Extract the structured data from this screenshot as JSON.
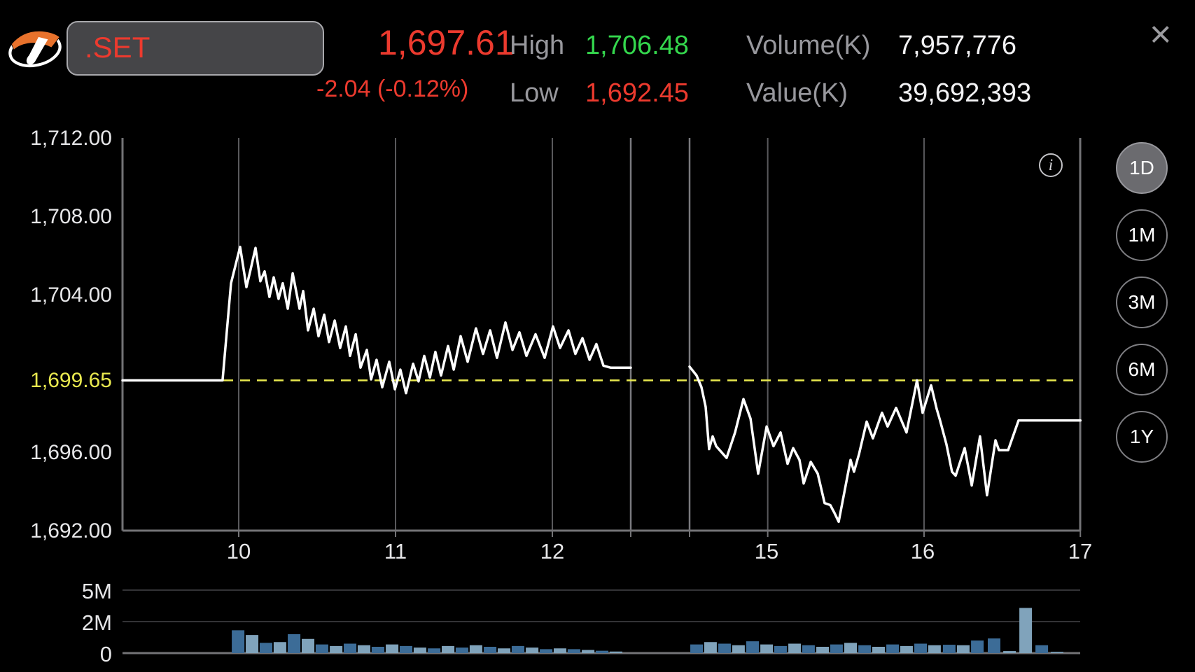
{
  "header": {
    "symbol_input": ".SET",
    "price": "1,697.61",
    "change": "-2.04 (-0.12%)",
    "high_label": "High",
    "high_value": "1,706.48",
    "low_label": "Low",
    "low_value": "1,692.45",
    "volume_label": "Volume(K)",
    "volume_value": "7,957,776",
    "value_label": "Value(K)",
    "value_value": "39,692,393",
    "close_icon": "×",
    "info_icon": "i"
  },
  "range_buttons": [
    {
      "label": "1D",
      "selected": true
    },
    {
      "label": "1M",
      "selected": false
    },
    {
      "label": "3M",
      "selected": false
    },
    {
      "label": "6M",
      "selected": false
    },
    {
      "label": "1Y",
      "selected": false
    }
  ],
  "colors": {
    "background": "#000000",
    "red": "#ec3a2e",
    "green": "#34d74d",
    "yellow": "#e9e94f",
    "gray_label": "#98989d",
    "white": "#f2f2f4",
    "axis": "#737376",
    "grid_hour": "#59595c",
    "grid_session": "#7a7a7e",
    "vol_grid": "#333336",
    "bar_dark": "#3c6c97",
    "bar_light": "#80a3bb",
    "price_line": "#ffffff",
    "logo_orange": "#e8722c"
  },
  "chart_data": {
    "type": "line",
    "title": ".SET intraday price with volume",
    "x_axis": {
      "tick_labels": [
        "10",
        "11",
        "12",
        "15",
        "16",
        "17"
      ],
      "tick_hours": [
        10,
        11,
        12,
        15,
        16,
        17
      ],
      "grid_hours": [
        10,
        11,
        12,
        15,
        16
      ],
      "session_breaks": [
        12.5,
        14.5
      ],
      "sessions": [
        [
          9.26,
          12.5
        ],
        [
          14.5,
          17.0
        ]
      ]
    },
    "y_axis": {
      "tick_labels": [
        "1,712.00",
        "1,708.00",
        "1,704.00",
        "1,696.00",
        "1,692.00"
      ],
      "tick_values": [
        1712,
        1708,
        1704,
        1696,
        1692
      ],
      "range": [
        1692,
        1712
      ]
    },
    "prev_close": {
      "label": "1,699.65",
      "value": 1699.65
    },
    "stats": {
      "open_flat": 1699.65,
      "high": 1706.48,
      "low": 1692.45,
      "close": 1697.61
    },
    "price_series": {
      "morning": [
        [
          9.259,
          1699.65
        ],
        [
          9.897,
          1699.65
        ],
        [
          9.951,
          1704.6
        ],
        [
          10.009,
          1706.45
        ],
        [
          10.049,
          1704.4
        ],
        [
          10.076,
          1705.3
        ],
        [
          10.107,
          1706.4
        ],
        [
          10.138,
          1704.7
        ],
        [
          10.165,
          1705.2
        ],
        [
          10.196,
          1703.9
        ],
        [
          10.223,
          1704.9
        ],
        [
          10.254,
          1703.8
        ],
        [
          10.281,
          1704.6
        ],
        [
          10.313,
          1703.3
        ],
        [
          10.344,
          1705.1
        ],
        [
          10.388,
          1703.3
        ],
        [
          10.411,
          1704.2
        ],
        [
          10.442,
          1702.2
        ],
        [
          10.478,
          1703.3
        ],
        [
          10.509,
          1701.9
        ],
        [
          10.545,
          1703.0
        ],
        [
          10.576,
          1701.6
        ],
        [
          10.612,
          1702.7
        ],
        [
          10.647,
          1701.3
        ],
        [
          10.683,
          1702.4
        ],
        [
          10.71,
          1700.9
        ],
        [
          10.746,
          1702.0
        ],
        [
          10.777,
          1700.3
        ],
        [
          10.817,
          1701.2
        ],
        [
          10.844,
          1699.7
        ],
        [
          10.879,
          1700.7
        ],
        [
          10.915,
          1699.3
        ],
        [
          10.96,
          1700.6
        ],
        [
          10.996,
          1699.2
        ],
        [
          11.031,
          1700.2
        ],
        [
          11.067,
          1699.0
        ],
        [
          11.112,
          1700.5
        ],
        [
          11.147,
          1699.6
        ],
        [
          11.183,
          1700.9
        ],
        [
          11.219,
          1699.8
        ],
        [
          11.254,
          1701.1
        ],
        [
          11.29,
          1699.9
        ],
        [
          11.335,
          1701.4
        ],
        [
          11.371,
          1700.2
        ],
        [
          11.415,
          1701.9
        ],
        [
          11.46,
          1700.6
        ],
        [
          11.513,
          1702.3
        ],
        [
          11.558,
          1701.0
        ],
        [
          11.603,
          1702.2
        ],
        [
          11.647,
          1700.8
        ],
        [
          11.701,
          1702.6
        ],
        [
          11.746,
          1701.2
        ],
        [
          11.79,
          1702.1
        ],
        [
          11.835,
          1700.9
        ],
        [
          11.893,
          1702.0
        ],
        [
          11.951,
          1700.8
        ],
        [
          12.004,
          1702.4
        ],
        [
          12.049,
          1701.3
        ],
        [
          12.103,
          1702.2
        ],
        [
          12.147,
          1701.0
        ],
        [
          12.192,
          1701.8
        ],
        [
          12.237,
          1700.7
        ],
        [
          12.281,
          1701.5
        ],
        [
          12.326,
          1700.4
        ],
        [
          12.371,
          1700.3
        ],
        [
          12.5,
          1700.3
        ]
      ],
      "afternoon": [
        [
          14.5,
          1700.35
        ],
        [
          14.545,
          1699.9
        ],
        [
          14.576,
          1699.3
        ],
        [
          14.603,
          1698.3
        ],
        [
          14.625,
          1696.15
        ],
        [
          14.648,
          1696.8
        ],
        [
          14.67,
          1696.3
        ],
        [
          14.737,
          1695.7
        ],
        [
          14.791,
          1697.0
        ],
        [
          14.845,
          1698.7
        ],
        [
          14.89,
          1697.7
        ],
        [
          14.939,
          1694.9
        ],
        [
          14.993,
          1697.3
        ],
        [
          15.037,
          1696.3
        ],
        [
          15.082,
          1697.0
        ],
        [
          15.127,
          1695.4
        ],
        [
          15.163,
          1696.2
        ],
        [
          15.203,
          1695.6
        ],
        [
          15.23,
          1694.4
        ],
        [
          15.275,
          1695.5
        ],
        [
          15.32,
          1694.9
        ],
        [
          15.364,
          1693.4
        ],
        [
          15.4,
          1693.3
        ],
        [
          15.427,
          1692.9
        ],
        [
          15.454,
          1692.45
        ],
        [
          15.53,
          1695.6
        ],
        [
          15.552,
          1695.0
        ],
        [
          15.584,
          1695.9
        ],
        [
          15.633,
          1697.55
        ],
        [
          15.673,
          1696.7
        ],
        [
          15.731,
          1698.0
        ],
        [
          15.767,
          1697.3
        ],
        [
          15.821,
          1698.25
        ],
        [
          15.888,
          1697.0
        ],
        [
          15.955,
          1699.65
        ],
        [
          15.991,
          1698.0
        ],
        [
          16.045,
          1699.4
        ],
        [
          16.081,
          1698.2
        ],
        [
          16.103,
          1697.6
        ],
        [
          16.143,
          1696.4
        ],
        [
          16.179,
          1695.0
        ],
        [
          16.202,
          1694.8
        ],
        [
          16.26,
          1696.2
        ],
        [
          16.305,
          1694.3
        ],
        [
          16.358,
          1696.8
        ],
        [
          16.403,
          1693.8
        ],
        [
          16.457,
          1696.6
        ],
        [
          16.479,
          1696.1
        ],
        [
          16.538,
          1696.1
        ],
        [
          16.605,
          1697.61
        ],
        [
          17.0,
          1697.61
        ]
      ]
    },
    "volume": {
      "tick_labels": [
        "5M",
        "2M",
        "0"
      ],
      "tick_values": [
        5000000,
        2000000,
        0
      ],
      "scale_note": "non-linear axis: 0-2M and 2M-5M spans have equal height",
      "bars_unit": "millions",
      "bars": [
        [
          9.996,
          1.45,
          "d"
        ],
        [
          10.085,
          1.15,
          "l"
        ],
        [
          10.174,
          0.65,
          "d"
        ],
        [
          10.263,
          0.7,
          "l"
        ],
        [
          10.353,
          1.2,
          "d"
        ],
        [
          10.442,
          0.9,
          "l"
        ],
        [
          10.531,
          0.55,
          "d"
        ],
        [
          10.621,
          0.45,
          "l"
        ],
        [
          10.71,
          0.6,
          "d"
        ],
        [
          10.799,
          0.5,
          "l"
        ],
        [
          10.888,
          0.4,
          "d"
        ],
        [
          10.978,
          0.55,
          "l"
        ],
        [
          11.067,
          0.45,
          "d"
        ],
        [
          11.156,
          0.35,
          "l"
        ],
        [
          11.246,
          0.3,
          "d"
        ],
        [
          11.335,
          0.45,
          "l"
        ],
        [
          11.424,
          0.35,
          "d"
        ],
        [
          11.513,
          0.5,
          "l"
        ],
        [
          11.603,
          0.4,
          "d"
        ],
        [
          11.692,
          0.3,
          "l"
        ],
        [
          11.781,
          0.45,
          "d"
        ],
        [
          11.871,
          0.35,
          "l"
        ],
        [
          11.96,
          0.25,
          "d"
        ],
        [
          12.049,
          0.3,
          "l"
        ],
        [
          12.138,
          0.25,
          "d"
        ],
        [
          12.228,
          0.2,
          "l"
        ],
        [
          12.317,
          0.15,
          "d"
        ],
        [
          12.406,
          0.1,
          "l"
        ],
        [
          14.545,
          0.55,
          "d"
        ],
        [
          14.634,
          0.7,
          "l"
        ],
        [
          14.724,
          0.6,
          "d"
        ],
        [
          14.813,
          0.5,
          "l"
        ],
        [
          14.903,
          0.75,
          "d"
        ],
        [
          14.993,
          0.55,
          "l"
        ],
        [
          15.082,
          0.45,
          "d"
        ],
        [
          15.172,
          0.6,
          "l"
        ],
        [
          15.261,
          0.5,
          "d"
        ],
        [
          15.351,
          0.4,
          "l"
        ],
        [
          15.44,
          0.55,
          "d"
        ],
        [
          15.53,
          0.65,
          "l"
        ],
        [
          15.62,
          0.5,
          "d"
        ],
        [
          15.709,
          0.4,
          "l"
        ],
        [
          15.799,
          0.55,
          "d"
        ],
        [
          15.888,
          0.45,
          "l"
        ],
        [
          15.978,
          0.6,
          "d"
        ],
        [
          16.067,
          0.5,
          "l"
        ],
        [
          16.161,
          0.53,
          "d"
        ],
        [
          16.251,
          0.5,
          "l"
        ],
        [
          16.341,
          0.8,
          "d"
        ],
        [
          16.448,
          0.93,
          "d"
        ],
        [
          16.547,
          0.13,
          "l"
        ],
        [
          16.65,
          3.3,
          "l"
        ],
        [
          16.753,
          0.5,
          "d"
        ],
        [
          16.851,
          0.08,
          "l"
        ]
      ]
    }
  }
}
